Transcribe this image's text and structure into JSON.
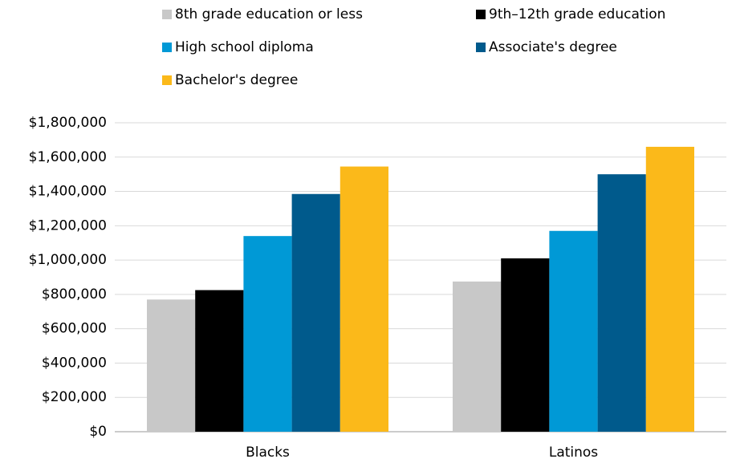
{
  "chart_data": {
    "type": "bar",
    "categories": [
      "Blacks",
      "Latinos"
    ],
    "series": [
      {
        "name": "8th grade education or less",
        "color": "#c8c8c8",
        "values": [
          770000,
          875000
        ]
      },
      {
        "name": "9th–12th grade education",
        "color": "#000000",
        "values": [
          825000,
          1010000
        ]
      },
      {
        "name": "High school diploma",
        "color": "#0099d6",
        "values": [
          1140000,
          1170000
        ]
      },
      {
        "name": "Associate's degree",
        "color": "#005a8c",
        "values": [
          1385000,
          1500000
        ]
      },
      {
        "name": "Bachelor's degree",
        "color": "#fbb91a",
        "values": [
          1545000,
          1660000
        ]
      }
    ],
    "ylim": [
      0,
      1800000
    ],
    "yticks": [
      {
        "value": 0,
        "label": "$0"
      },
      {
        "value": 200000,
        "label": "$200,000"
      },
      {
        "value": 400000,
        "label": "$400,000"
      },
      {
        "value": 600000,
        "label": "$600,000"
      },
      {
        "value": 800000,
        "label": "$800,000"
      },
      {
        "value": 1000000,
        "label": "$1,000,000"
      },
      {
        "value": 1200000,
        "label": "$1,200,000"
      },
      {
        "value": 1400000,
        "label": "$1,400,000"
      },
      {
        "value": 1600000,
        "label": "$1,600,000"
      },
      {
        "value": 1800000,
        "label": "$1,800,000"
      }
    ],
    "grid": true,
    "legend": "top"
  }
}
